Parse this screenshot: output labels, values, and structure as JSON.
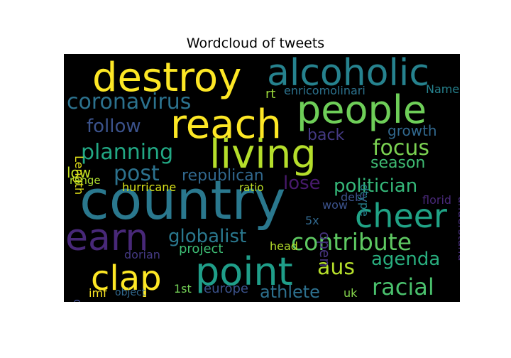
{
  "chart_data": {
    "type": "wordcloud",
    "title": "Wordcloud of tweets",
    "words": [
      {
        "text": "country",
        "color": "#2a788e"
      },
      {
        "text": "living",
        "color": "#b5de2b"
      },
      {
        "text": "reach",
        "color": "#fde725"
      },
      {
        "text": "destroy",
        "color": "#fde725"
      },
      {
        "text": "people",
        "color": "#6ece58"
      },
      {
        "text": "alcoholic",
        "color": "#26828e"
      },
      {
        "text": "point",
        "color": "#1f9e89"
      },
      {
        "text": "earn",
        "color": "#482878"
      },
      {
        "text": "clap",
        "color": "#fde725"
      },
      {
        "text": "cheer",
        "color": "#20a386"
      },
      {
        "text": "contribute",
        "color": "#5ec962"
      },
      {
        "text": "coronavirus",
        "color": "#2c728e"
      },
      {
        "text": "planning",
        "color": "#22a884"
      },
      {
        "text": "post",
        "color": "#2c728e"
      },
      {
        "text": "focus",
        "color": "#7ad151"
      },
      {
        "text": "racial",
        "color": "#4ac16d"
      },
      {
        "text": "politician",
        "color": "#35b779"
      },
      {
        "text": "follow",
        "color": "#3b528b"
      },
      {
        "text": "globalist",
        "color": "#2a788e"
      },
      {
        "text": "aus",
        "color": "#b5de2b"
      },
      {
        "text": "athlete",
        "color": "#2d708e"
      },
      {
        "text": "agenda",
        "color": "#29af7f"
      },
      {
        "text": "republican",
        "color": "#31688e"
      },
      {
        "text": "season",
        "color": "#3fbc73"
      },
      {
        "text": "back",
        "color": "#443983"
      },
      {
        "text": "growth",
        "color": "#31688e"
      },
      {
        "text": "lose",
        "color": "#481a6c"
      },
      {
        "text": "low",
        "color": "#c2df23"
      },
      {
        "text": "project",
        "color": "#3dbc74"
      },
      {
        "text": "europe",
        "color": "#3b528b"
      },
      {
        "text": "open",
        "color": "#46337e"
      },
      {
        "text": "hurricane",
        "color": "#d8e219"
      },
      {
        "text": "rt",
        "color": "#9bd93c"
      },
      {
        "text": "enricomolinari",
        "color": "#2c728e"
      },
      {
        "text": "Name",
        "color": "#26828e"
      },
      {
        "text": "understand",
        "color": "#472d7b"
      },
      {
        "text": "dtype",
        "color": "#26828e"
      },
      {
        "text": "Length",
        "color": "#e5e419"
      },
      {
        "text": "range",
        "color": "#addc30"
      },
      {
        "text": "ratio",
        "color": "#bddf26"
      },
      {
        "text": "wow",
        "color": "#3b528b"
      },
      {
        "text": "debt",
        "color": "#3b528b"
      },
      {
        "text": "florid",
        "color": "#482878"
      },
      {
        "text": "5x",
        "color": "#31688e"
      },
      {
        "text": "head",
        "color": "#b5de2b"
      },
      {
        "text": "dorian",
        "color": "#443983"
      },
      {
        "text": "capita",
        "color": "#3e4a89"
      },
      {
        "text": "imf",
        "color": "#fde725"
      },
      {
        "text": "object",
        "color": "#31688e"
      },
      {
        "text": "1st",
        "color": "#73d056"
      },
      {
        "text": "uk",
        "color": "#84d44b"
      }
    ]
  }
}
